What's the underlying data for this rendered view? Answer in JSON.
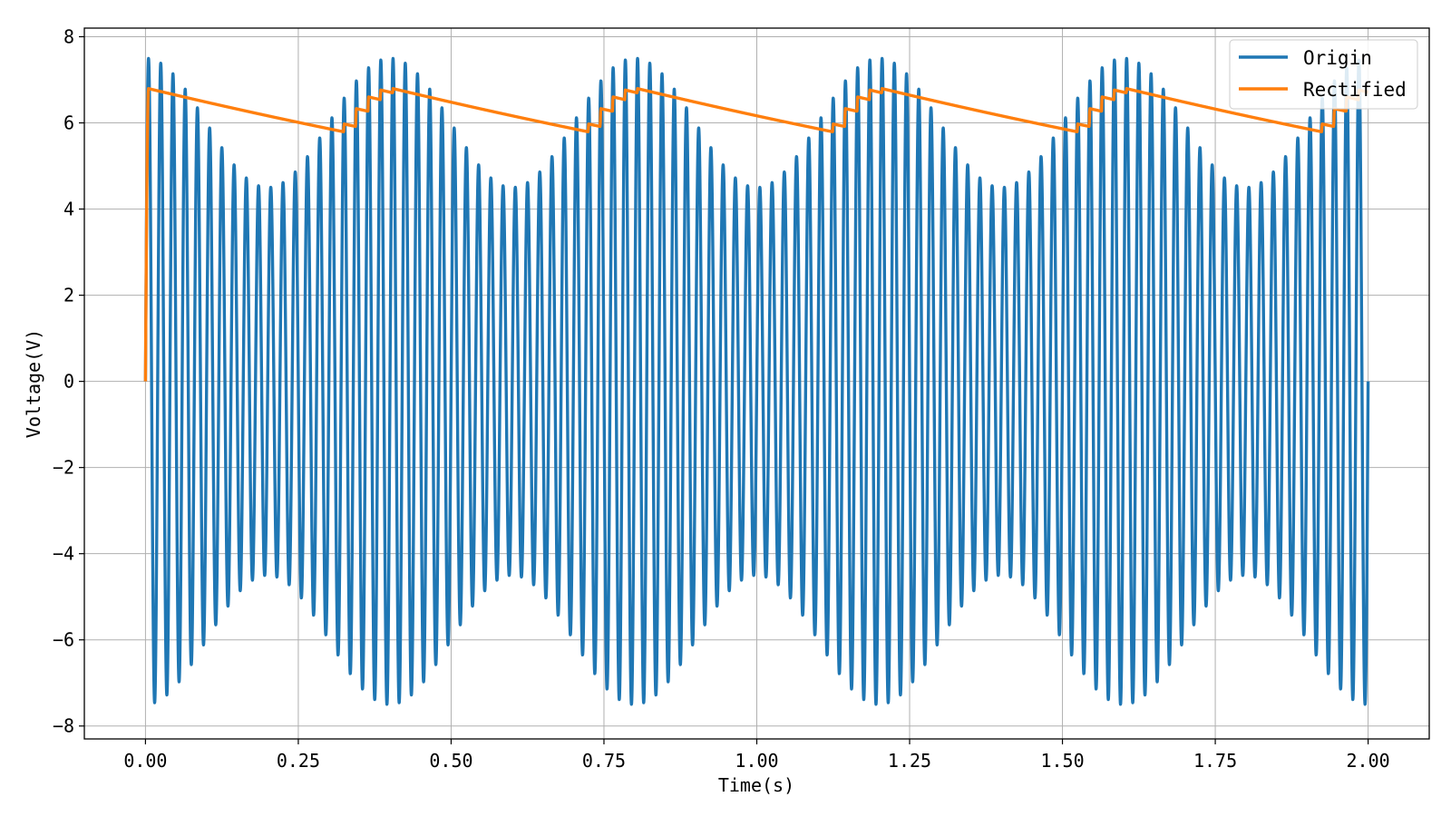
{
  "chart_data": {
    "type": "line",
    "title": "",
    "xlabel": "Time(s)",
    "ylabel": "Voltage(V)",
    "xlim": [
      -0.1,
      2.1
    ],
    "ylim": [
      -8.3,
      8.2
    ],
    "x_ticks": [
      "0.00",
      "0.25",
      "0.50",
      "0.75",
      "1.00",
      "1.25",
      "1.50",
      "1.75",
      "2.00"
    ],
    "y_ticks": [
      "−8",
      "−6",
      "−4",
      "−2",
      "0",
      "2",
      "4",
      "6",
      "8"
    ],
    "grid": true,
    "legend_position": "top-right",
    "series": [
      {
        "name": "Origin",
        "color": "#1f77b4",
        "signal": "amplitude-modulated sine",
        "carrier_frequency_hz": 50,
        "envelope_frequency_hz": 2.5,
        "amplitude_max": 7.5,
        "amplitude_min": 4.5,
        "t_range": [
          0,
          2
        ]
      },
      {
        "name": "Rectified",
        "color": "#ff7f0e",
        "signal": "peak detector output of Origin",
        "initial_value": 0,
        "peak_value": 6.7,
        "trough_value": 5.2,
        "t_range": [
          0,
          2
        ]
      }
    ]
  }
}
